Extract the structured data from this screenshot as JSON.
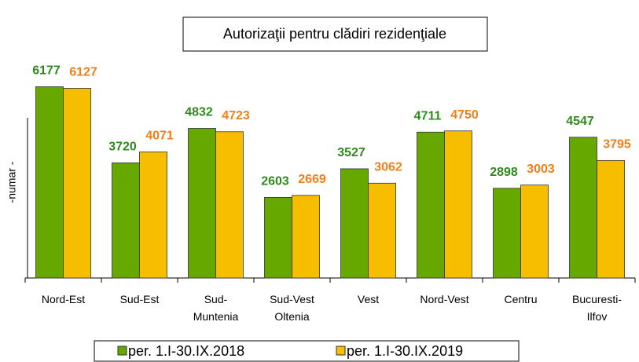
{
  "chart_data": {
    "type": "bar",
    "title": "Autorizaţii pentru clădiri rezidenţiale",
    "y_label": "-numar -",
    "categories": [
      "Nord-Est",
      "Sud-Est",
      "Sud-\nMuntenia",
      "Sud-Vest\nOltenia",
      "Vest",
      "Nord-Vest",
      "Centru",
      "Bucuresti-\nIlfov"
    ],
    "series": [
      {
        "name": "per. 1.I-30.IX.2018",
        "color": "#66a800",
        "label_color": "#2f8a1c",
        "values": [
          6177,
          3720,
          4832,
          2603,
          3527,
          4711,
          2898,
          4547
        ]
      },
      {
        "name": "per. 1.I-30.IX.2019",
        "color": "#f7be00",
        "label_color": "#f07f1a",
        "values": [
          6127,
          4071,
          4723,
          2669,
          3062,
          4750,
          3003,
          3795
        ]
      }
    ],
    "ylim": [
      0,
      7000
    ],
    "grid": false
  }
}
